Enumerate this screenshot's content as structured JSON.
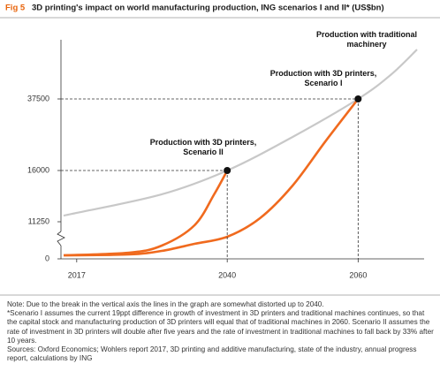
{
  "chart_data": {
    "type": "line",
    "figure_label": "Fig 5",
    "title": "3D printing's impact on world manufacturing production, ING scenarios I and II* (US$bn)",
    "xlim": [
      2015,
      2069
    ],
    "xticks": [
      2017,
      2040,
      2060
    ],
    "ylim": [
      0,
      55000
    ],
    "yticks": [
      0,
      11250,
      16000,
      37500
    ],
    "broken_axis": true,
    "series": [
      {
        "name": "Production with traditional machinery",
        "color": "#c8c8c8",
        "x": [
          2015,
          2017,
          2030,
          2040,
          2050,
          2060,
          2065,
          2069
        ],
        "values": [
          11820,
          12070,
          13790,
          16000,
          26090,
          37500,
          44650,
          52100
        ]
      },
      {
        "name": "Production with 3D printers, Scenario I",
        "color": "#f06a1e",
        "x": [
          2015,
          2025,
          2030,
          2035,
          2040,
          2045,
          2050,
          2055,
          2060
        ],
        "values": [
          1070,
          1340,
          2410,
          4550,
          6700,
          11580,
          14610,
          24750,
          37500
        ]
      },
      {
        "name": "Production with 3D printers, Scenario II",
        "color": "#f06a1e",
        "x": [
          2015,
          2025,
          2030,
          2035,
          2038,
          2040
        ],
        "values": [
          1070,
          1880,
          4020,
          10180,
          13790,
          16000
        ]
      }
    ]
  },
  "notes": {
    "note": "Note: Due to the break in the vertical axis the lines in the graph are somewhat distorted up to 2040.",
    "footnote": "*Scenario I assumes the current 19ppt difference in growth of investment in 3D printers and traditional machines continues, so that the capital stock and manufacturing production of 3D printers will equal that of traditional machines in 2060. Scenario II assumes the rate of investment in 3D printers will double after five years and the rate of investment in traditional machines to fall back by 33% after 10 years.",
    "sources": "Sources: Oxford Economics; Wohlers report 2017, 3D printing and additive manufacturing, state of the industry, annual progress report, calculations by ING"
  }
}
